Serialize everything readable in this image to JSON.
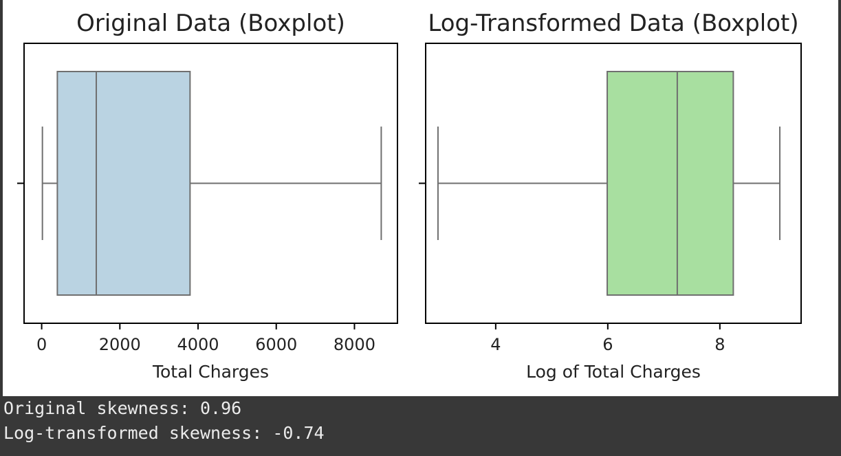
{
  "chart_data": [
    {
      "type": "boxplot",
      "title": "Original Data (Boxplot)",
      "xlabel": "Total Charges",
      "ylabel": "",
      "xlim": [
        -450,
        9100
      ],
      "xticks": [
        0,
        2000,
        4000,
        6000,
        8000
      ],
      "tick_labels": [
        "0",
        "2000",
        "4000",
        "6000",
        "8000"
      ],
      "box": {
        "whisker_low": 19,
        "q1": 401,
        "median": 1397,
        "q3": 3795,
        "whisker_high": 8685
      },
      "color": "#bad3e2",
      "grid": false,
      "legend": "none"
    },
    {
      "type": "boxplot",
      "title": "Log-Transformed Data (Boxplot)",
      "xlabel": "Log of Total Charges",
      "ylabel": "",
      "xlim": [
        2.75,
        9.45
      ],
      "xticks": [
        4,
        6,
        8
      ],
      "tick_labels": [
        "4",
        "6",
        "8"
      ],
      "box": {
        "whisker_low": 2.97,
        "q1": 5.99,
        "median": 7.24,
        "q3": 8.24,
        "whisker_high": 9.07
      },
      "color": "#a8dfa0",
      "grid": false,
      "legend": "none"
    }
  ],
  "console": {
    "line1": "Original skewness: 0.96",
    "line2": "Log-transformed skewness: -0.74"
  }
}
